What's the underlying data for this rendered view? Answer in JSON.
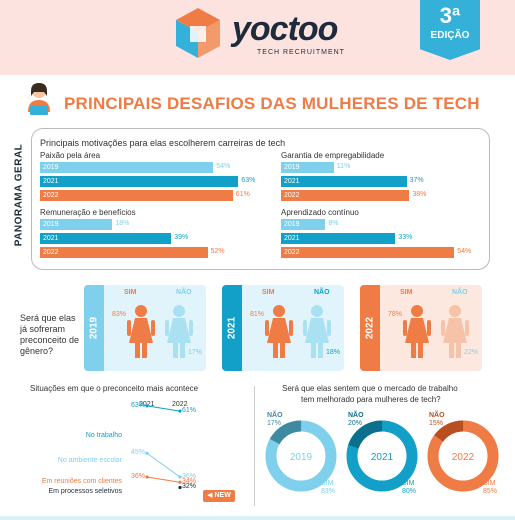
{
  "header": {
    "brand": "yoctoo",
    "brand_sub": "TECH RECRUITMENT",
    "badge_number": "3ª",
    "badge_text": "EDIÇÃO"
  },
  "title": "PRINCIPAIS DESAFIOS DAS MULHERES DE TECH",
  "panorama": {
    "side_label": "PANORAMA GERAL",
    "heading": "Principais motivações para elas escolherem carreiras de tech",
    "groups": [
      {
        "label": "Paixão pela área",
        "rows": [
          {
            "year": "2019",
            "value": 54,
            "text": "54%"
          },
          {
            "year": "2021",
            "value": 63,
            "text": "63%"
          },
          {
            "year": "2022",
            "value": 61,
            "text": "61%"
          }
        ]
      },
      {
        "label": "Garantia de empregabilidade",
        "rows": [
          {
            "year": "2019",
            "value": 11,
            "text": "11%"
          },
          {
            "year": "2021",
            "value": 37,
            "text": "37%"
          },
          {
            "year": "2022",
            "value": 38,
            "text": "38%"
          }
        ]
      },
      {
        "label": "Remuneração e benefícios",
        "rows": [
          {
            "year": "2019",
            "value": 18,
            "text": "18%"
          },
          {
            "year": "2021",
            "value": 39,
            "text": "39%"
          },
          {
            "year": "2022",
            "value": 52,
            "text": "52%"
          }
        ]
      },
      {
        "label": "Aprendizado contínuo",
        "rows": [
          {
            "year": "2019",
            "value": 8,
            "text": "8%"
          },
          {
            "year": "2021",
            "value": 33,
            "text": "33%"
          },
          {
            "year": "2022",
            "value": 54,
            "text": "54%"
          }
        ]
      }
    ]
  },
  "prejudice": {
    "question": "Será que elas já sofreram preconceito de gênero?",
    "cards": [
      {
        "year": "2019",
        "sim_label": "SIM",
        "nao_label": "NÃO",
        "sim": "83%",
        "nao": "17%"
      },
      {
        "year": "2021",
        "sim_label": "SIM",
        "nao_label": "NÃO",
        "sim": "81%",
        "nao": "18%"
      },
      {
        "year": "2022",
        "sim_label": "SIM",
        "nao_label": "NÃO",
        "sim": "78%",
        "nao": "22%"
      }
    ]
  },
  "situations": {
    "title": "Situações em que o preconceito mais acontece",
    "col_2021": "2021",
    "col_2022": "2022",
    "items": [
      {
        "label": "No trabalho",
        "v2021": "63%",
        "v2022": "61%"
      },
      {
        "label": "No ambiente escolar",
        "v2021": "45%",
        "v2022": "36%"
      },
      {
        "label": "Em reuniões com clientes",
        "v2021": "36%",
        "v2022": "34%"
      },
      {
        "label": "Em processos seletivos",
        "v2021": "",
        "v2022": "32%"
      }
    ],
    "new_label": "NEW"
  },
  "market": {
    "title_line1": "Será que elas sentem que o mercado de trabalho",
    "title_line2": "tem melhorado para mulheres de tech?",
    "donuts": [
      {
        "year": "2019",
        "nao_label": "NÃO",
        "nao": "17%",
        "sim_label": "SIM",
        "sim": "83%",
        "nao_value": 17
      },
      {
        "year": "2021",
        "nao_label": "NÃO",
        "nao": "20%",
        "sim_label": "SIM",
        "sim": "80%",
        "nao_value": 20
      },
      {
        "year": "2022",
        "nao_label": "NÃO",
        "nao": "15%",
        "sim_label": "SIM",
        "sim": "85%",
        "nao_value": 15
      }
    ]
  },
  "colors": {
    "y2019": "#7fd0ec",
    "y2021": "#12a0c8",
    "y2022": "#ef7b45",
    "accent": "#ef7b45",
    "dark": "#1d2b3a"
  },
  "icons": {
    "logo": "cube-logo-icon",
    "person": "woman-laptop-icon",
    "woman": "woman-figure-icon"
  }
}
